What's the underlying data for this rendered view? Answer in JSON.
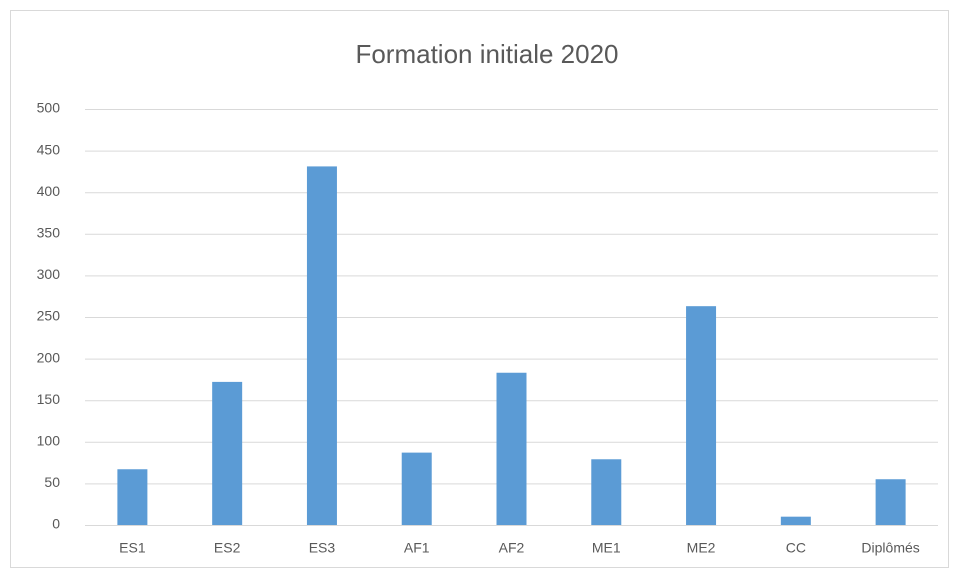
{
  "chart_data": {
    "type": "bar",
    "title": "Formation initiale 2020",
    "categories": [
      "ES1",
      "ES2",
      "ES3",
      "AF1",
      "AF2",
      "ME1",
      "ME2",
      "CC",
      "Diplômés"
    ],
    "values": [
      67,
      172,
      431,
      87,
      183,
      79,
      263,
      10,
      55
    ],
    "color": "#5b9bd5",
    "ylim": [
      0,
      500
    ],
    "yticks": [
      0,
      50,
      100,
      150,
      200,
      250,
      300,
      350,
      400,
      450,
      500
    ],
    "grid": true
  }
}
